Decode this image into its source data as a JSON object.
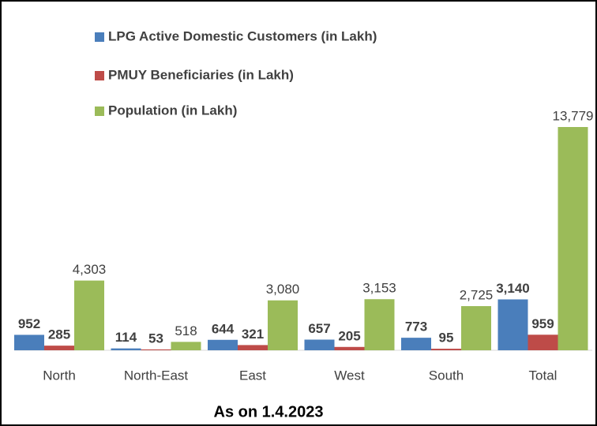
{
  "chart_data": {
    "type": "bar",
    "title": "As on 1.4.2023",
    "categories": [
      "North",
      "North-East",
      "East",
      "West",
      "South",
      "Total"
    ],
    "series": [
      {
        "name": "LPG Active Domestic Customers (in Lakh)",
        "color": "#4a7ebb",
        "values": [
          952,
          114,
          644,
          657,
          773,
          3140
        ],
        "value_labels": [
          "952",
          "114",
          "644",
          "657",
          "773",
          "3,140"
        ]
      },
      {
        "name": "PMUY Beneficiaries (in Lakh)",
        "color": "#be4b48",
        "values": [
          285,
          53,
          321,
          205,
          95,
          959
        ],
        "value_labels": [
          "285",
          "53",
          "321",
          "205",
          "95",
          "959"
        ]
      },
      {
        "name": "Population (in Lakh)",
        "color": "#9bbb59",
        "values": [
          4303,
          518,
          3080,
          3153,
          2725,
          13779
        ],
        "value_labels": [
          "4,303",
          "518",
          "3,080",
          "3,153",
          "2,725",
          "13,779"
        ]
      }
    ],
    "legend": "top-left"
  }
}
